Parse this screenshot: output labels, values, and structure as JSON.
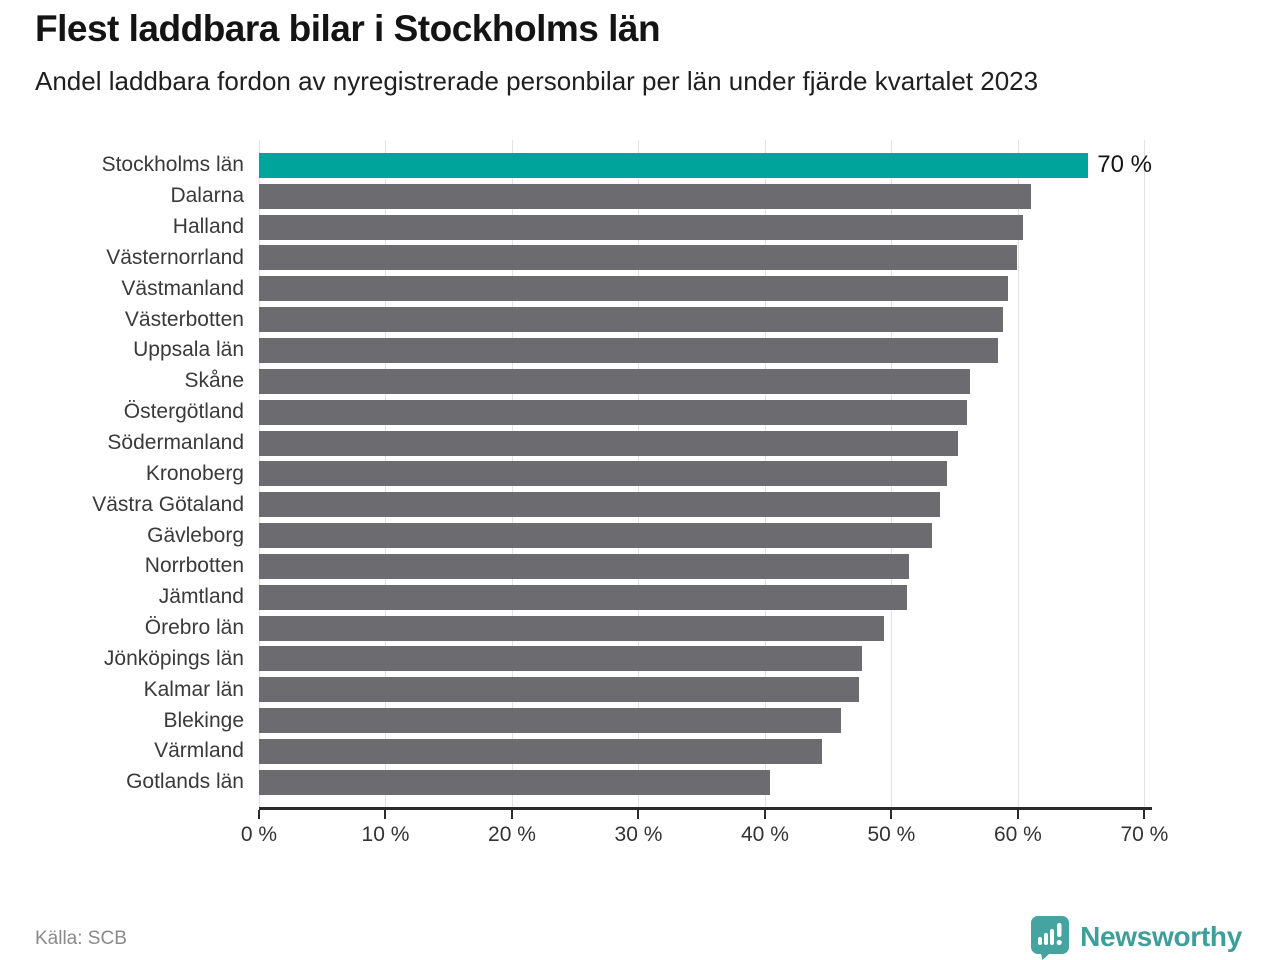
{
  "header": {
    "title": "Flest laddbara bilar i Stockholms län",
    "subtitle": "Andel laddbara fordon av nyregistrerade personbilar per län under fjärde kvartalet 2023"
  },
  "footer": {
    "source": "Källa: SCB",
    "brand": "Newsworthy"
  },
  "colors": {
    "highlight_bar": "#00a49b",
    "bar": "#6b6b70",
    "gridline": "#e2e2e2",
    "axis": "#2b2b2b",
    "brand": "#3f9e9a"
  },
  "chart_data": {
    "type": "bar",
    "orientation": "horizontal",
    "title": "Flest laddbara bilar i Stockholms län",
    "subtitle": "Andel laddbara fordon av nyregistrerade personbilar per län under fjärde kvartalet 2023",
    "categories": [
      "Stockholms län",
      "Dalarna",
      "Halland",
      "Västernorrland",
      "Västmanland",
      "Västerbotten",
      "Uppsala län",
      "Skåne",
      "Östergötland",
      "Södermanland",
      "Kronoberg",
      "Västra Götaland",
      "Gävleborg",
      "Norrbotten",
      "Jämtland",
      "Örebro län",
      "Jönköpings län",
      "Kalmar län",
      "Blekinge",
      "Värmland",
      "Gotlands län"
    ],
    "values": [
      70.4,
      61.0,
      60.4,
      59.9,
      59.2,
      58.8,
      58.4,
      56.2,
      56.0,
      55.3,
      54.4,
      53.8,
      53.2,
      51.4,
      51.2,
      49.4,
      47.7,
      47.4,
      46.0,
      44.5,
      40.4
    ],
    "highlight_index": 0,
    "value_label": {
      "index": 0,
      "text": "70 %"
    },
    "x_ticks": [
      {
        "value": 0,
        "label": "0 %"
      },
      {
        "value": 10,
        "label": "10 %"
      },
      {
        "value": 20,
        "label": "20 %"
      },
      {
        "value": 30,
        "label": "30 %"
      },
      {
        "value": 40,
        "label": "40 %"
      },
      {
        "value": 50,
        "label": "50 %"
      },
      {
        "value": 60,
        "label": "60 %"
      },
      {
        "value": 70,
        "label": "70 %"
      }
    ],
    "xlim": [
      0,
      70.6
    ],
    "ylabel": "",
    "xlabel": "",
    "grid": "vertical",
    "legend": "none",
    "unit": "%"
  }
}
